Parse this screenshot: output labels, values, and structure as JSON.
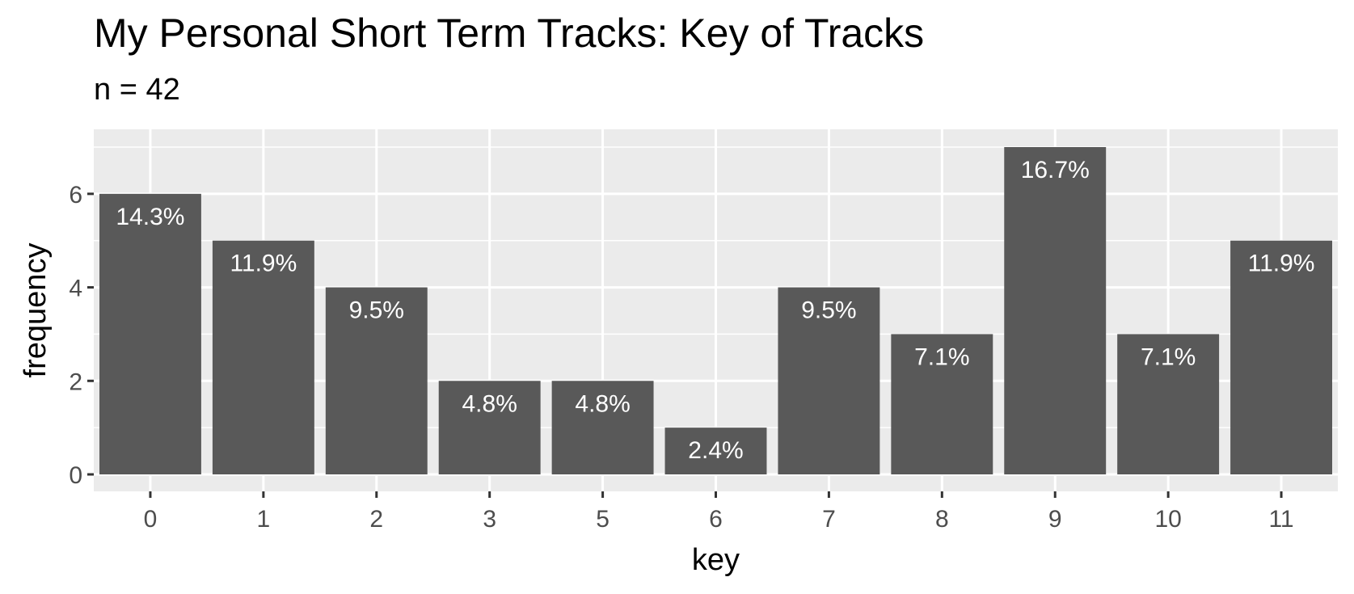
{
  "chart_data": {
    "type": "bar",
    "title": "My Personal Short Term Tracks: Key of Tracks",
    "subtitle": "n = 42",
    "xlabel": "key",
    "ylabel": "frequency",
    "categories": [
      "0",
      "1",
      "2",
      "3",
      "5",
      "6",
      "7",
      "8",
      "9",
      "10",
      "11"
    ],
    "values": [
      6,
      5,
      4,
      2,
      2,
      1,
      4,
      3,
      7,
      3,
      5
    ],
    "labels": [
      "14.3%",
      "11.9%",
      "9.5%",
      "4.8%",
      "4.8%",
      "2.4%",
      "9.5%",
      "7.1%",
      "16.7%",
      "7.1%",
      "11.9%"
    ],
    "yticks": [
      0,
      2,
      4,
      6
    ],
    "ylim": [
      0,
      7
    ],
    "grid": true,
    "legend": "none",
    "colors": {
      "bar": "#595959",
      "panel": "#ebebeb",
      "grid": "#ffffff",
      "bar_label": "#ffffff",
      "tick_label": "#4d4d4d",
      "axis_title": "#000000"
    }
  }
}
